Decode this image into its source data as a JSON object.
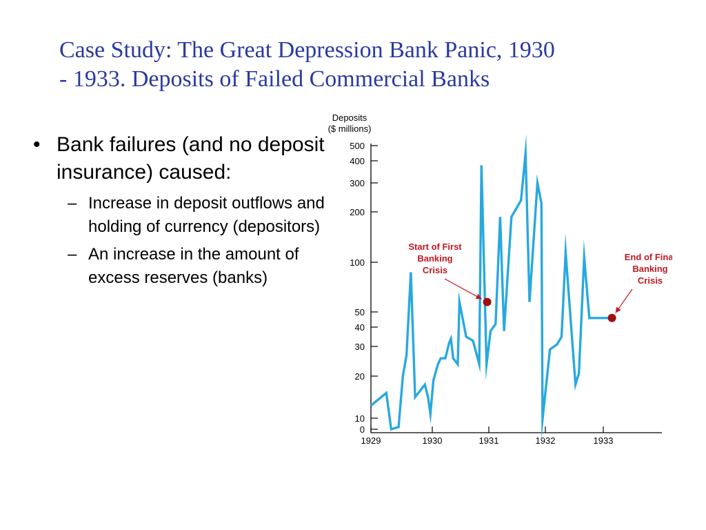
{
  "slide": {
    "title_line1": "Case Study: The Great Depression Bank Panic, 1930",
    "title_line2": "- 1933. Deposits of Failed Commercial Banks",
    "bullet": "Bank failures (and no deposit insurance) caused:",
    "sub_bullets": [
      "Increase in deposit outflows and holding of currency (depositors)",
      "An increase in the amount of excess reserves (banks)"
    ]
  },
  "chart_data": {
    "type": "line",
    "ylabel_line1": "Deposits",
    "ylabel_line2": "($ millions)",
    "y_ticks": [
      0,
      10,
      20,
      30,
      40,
      50,
      100,
      200,
      300,
      400,
      500
    ],
    "x_ticks": [
      "1929",
      "1930",
      "1931",
      "1932",
      "1933"
    ],
    "x": [
      1929.0,
      1929.25,
      1929.33,
      1929.45,
      1929.52,
      1929.58,
      1929.65,
      1929.72,
      1929.88,
      1929.93,
      1929.97,
      1930.02,
      1930.1,
      1930.15,
      1930.23,
      1930.3,
      1930.33,
      1930.37,
      1930.45,
      1930.48,
      1930.6,
      1930.72,
      1930.83,
      1930.87,
      1930.96,
      1931.03,
      1931.12,
      1931.2,
      1931.27,
      1931.4,
      1931.57,
      1931.65,
      1931.72,
      1931.86,
      1931.93,
      1931.95,
      1932.08,
      1932.2,
      1932.28,
      1932.35,
      1932.52,
      1932.58,
      1932.67,
      1932.76,
      1932.95,
      1933.05,
      1933.15
    ],
    "values": [
      13,
      16,
      0,
      2,
      20,
      27,
      90,
      15,
      18,
      15,
      11,
      19,
      24,
      26,
      26,
      32,
      34,
      26,
      24,
      60,
      35,
      33,
      24,
      380,
      24,
      38,
      42,
      190,
      38,
      190,
      240,
      450,
      60,
      300,
      230,
      9,
      29,
      31,
      35,
      120,
      18,
      21,
      110,
      46,
      46,
      46,
      46
    ],
    "annotations": [
      {
        "label_lines": [
          "Start of First",
          "Banking",
          "Crisis"
        ],
        "x": 1930.97,
        "y": 60
      },
      {
        "label_lines": [
          "End of Final",
          "Banking",
          "Crisis"
        ],
        "x": 1933.15,
        "y": 46
      }
    ],
    "colors": {
      "line": "#29a8e0",
      "marker": "#a01010",
      "annotation": "#c01820",
      "axis": "#000000"
    }
  }
}
